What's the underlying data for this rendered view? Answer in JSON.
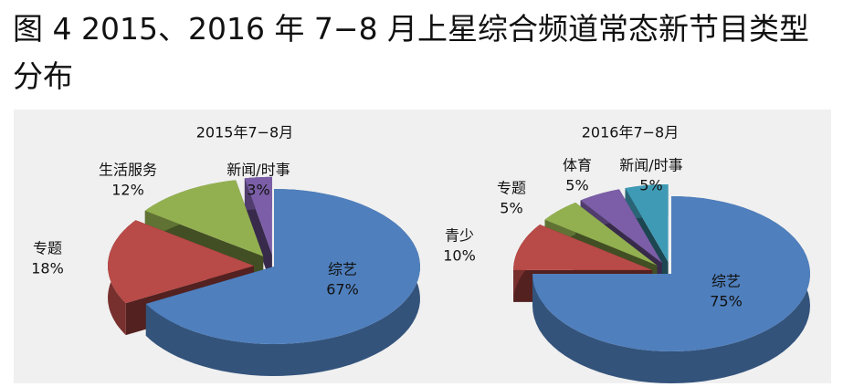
{
  "figure_title": "图 4 2015、2016 年 7−8 月上星综合频道常态新节目类型分布",
  "chart_data": [
    {
      "type": "pie",
      "title": "2015年7−8月",
      "categories": [
        "综艺",
        "专题",
        "生活服务",
        "新闻/时事"
      ],
      "values": [
        67,
        18,
        12,
        3
      ],
      "value_labels": [
        "67%",
        "18%",
        "12%",
        "3%"
      ],
      "colors": [
        "#4f7fbd",
        "#b84a47",
        "#93b050",
        "#7b5ea7"
      ]
    },
    {
      "type": "pie",
      "title": "2016年7−8月",
      "categories": [
        "综艺",
        "青少",
        "专题",
        "体育",
        "新闻/时事"
      ],
      "values": [
        75,
        10,
        5,
        5,
        5
      ],
      "value_labels": [
        "75%",
        "10%",
        "5%",
        "5%",
        "5%"
      ],
      "colors": [
        "#4f7fbd",
        "#b84a47",
        "#93b050",
        "#7b5ea7",
        "#3f9bb5"
      ]
    }
  ]
}
